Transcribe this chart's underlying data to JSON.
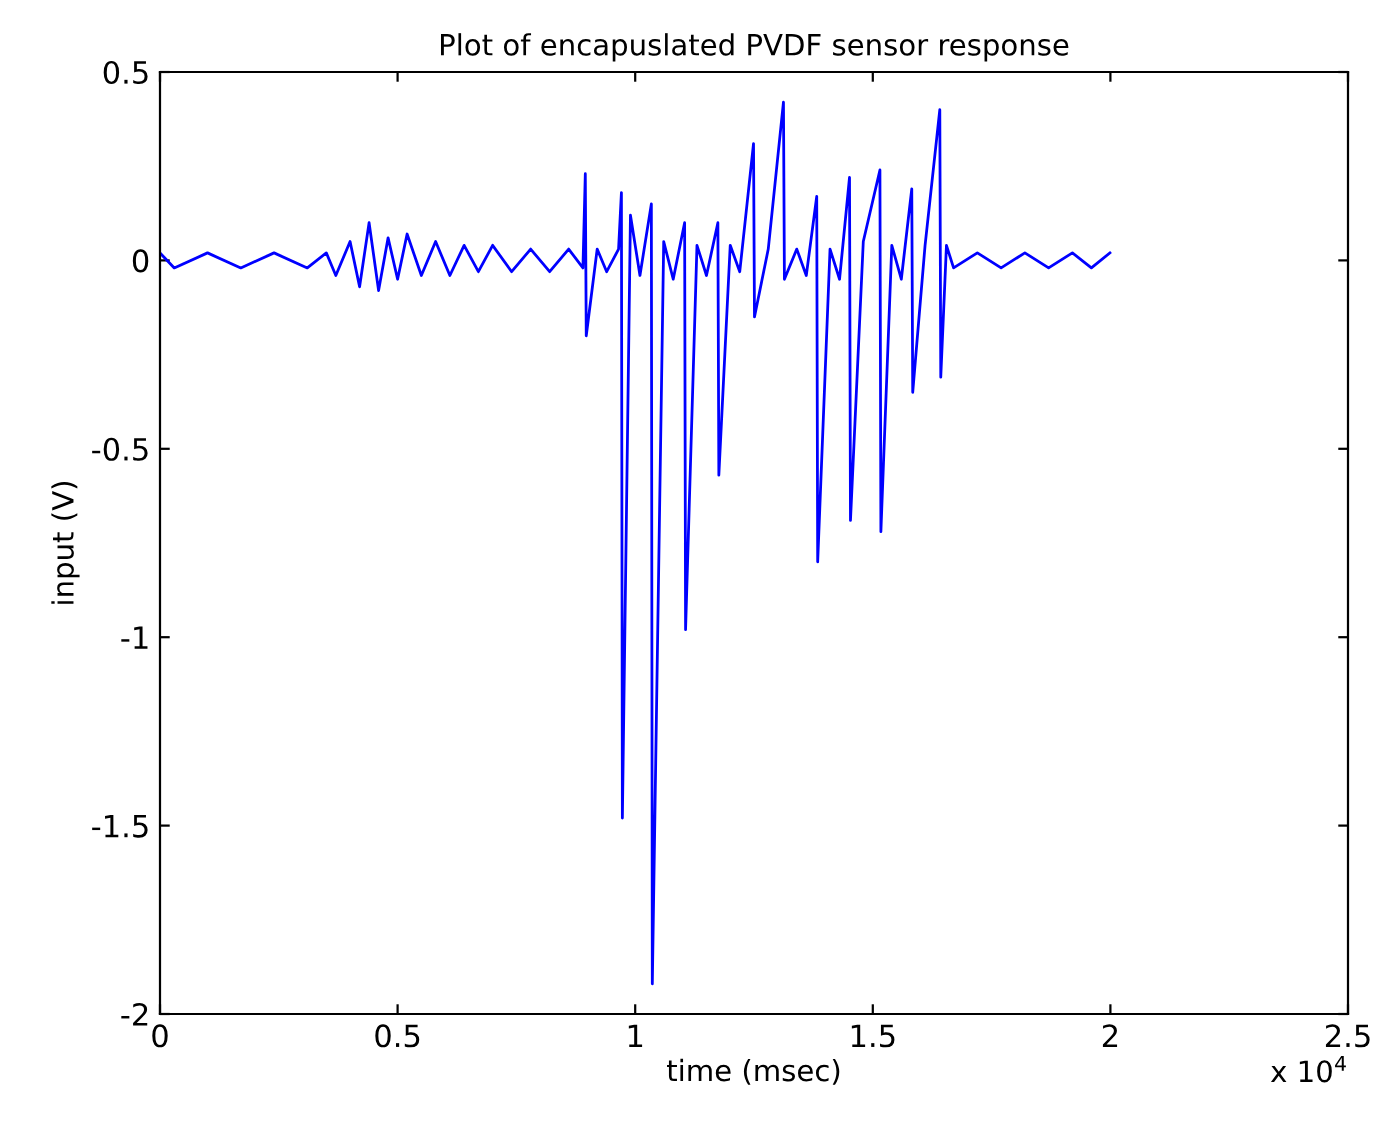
{
  "chart_data": {
    "type": "line",
    "title": "Plot of encapuslated PVDF sensor response",
    "xlabel": "time (msec)",
    "ylabel": "input (V)",
    "annotations": [
      "x 10$^{4}$"
    ],
    "series": [
      {
        "color": "#0000ff",
        "x": [
          0,
          0.03,
          0.1,
          0.17,
          0.24,
          0.31,
          0.35,
          0.37,
          0.4,
          0.42,
          0.44,
          0.46,
          0.48,
          0.5,
          0.52,
          0.55,
          0.58,
          0.61,
          0.64,
          0.67,
          0.7,
          0.74,
          0.78,
          0.82,
          0.86,
          0.89,
          0.895,
          0.897,
          0.92,
          0.94,
          0.965,
          0.971,
          0.973,
          0.99,
          1.01,
          1.034,
          1.036,
          1.06,
          1.08,
          1.104,
          1.106,
          1.13,
          1.15,
          1.174,
          1.176,
          1.2,
          1.22,
          1.249,
          1.251,
          1.28,
          1.312,
          1.314,
          1.34,
          1.36,
          1.382,
          1.384,
          1.41,
          1.43,
          1.451,
          1.453,
          1.48,
          1.515,
          1.517,
          1.54,
          1.56,
          1.582,
          1.584,
          1.61,
          1.641,
          1.643,
          1.655,
          1.67,
          1.72,
          1.77,
          1.82,
          1.87,
          1.92,
          1.96,
          1.999
        ],
        "values": [
          0.02,
          -0.02,
          0.02,
          -0.02,
          0.02,
          -0.02,
          0.02,
          -0.04,
          0.05,
          -0.07,
          0.1,
          -0.08,
          0.06,
          -0.05,
          0.07,
          -0.04,
          0.05,
          -0.04,
          0.04,
          -0.03,
          0.04,
          -0.03,
          0.03,
          -0.03,
          0.03,
          -0.02,
          0.23,
          -0.2,
          0.03,
          -0.03,
          0.03,
          0.18,
          -1.48,
          0.12,
          -0.04,
          0.15,
          -1.92,
          0.05,
          -0.05,
          0.1,
          -0.98,
          0.04,
          -0.04,
          0.1,
          -0.57,
          0.04,
          -0.03,
          0.31,
          -0.15,
          0.03,
          0.42,
          -0.05,
          0.03,
          -0.04,
          0.17,
          -0.8,
          0.03,
          -0.05,
          0.22,
          -0.69,
          0.05,
          0.24,
          -0.72,
          0.04,
          -0.05,
          0.19,
          -0.35,
          0.04,
          0.4,
          -0.31,
          0.04,
          -0.02,
          0.02,
          -0.02,
          0.02,
          -0.02,
          0.02,
          -0.02,
          0.02
        ]
      }
    ],
    "xlim": [
      0,
      2.5
    ],
    "xticks": [
      0,
      0.5,
      1,
      1.5,
      2,
      2.5
    ],
    "ylim": [
      -2,
      0.5
    ],
    "yticks": [
      -2,
      -1.5,
      -1,
      -0.5,
      0,
      0.5
    ],
    "grid": false,
    "legend": false,
    "marker": "none",
    "line_style": "solid"
  }
}
